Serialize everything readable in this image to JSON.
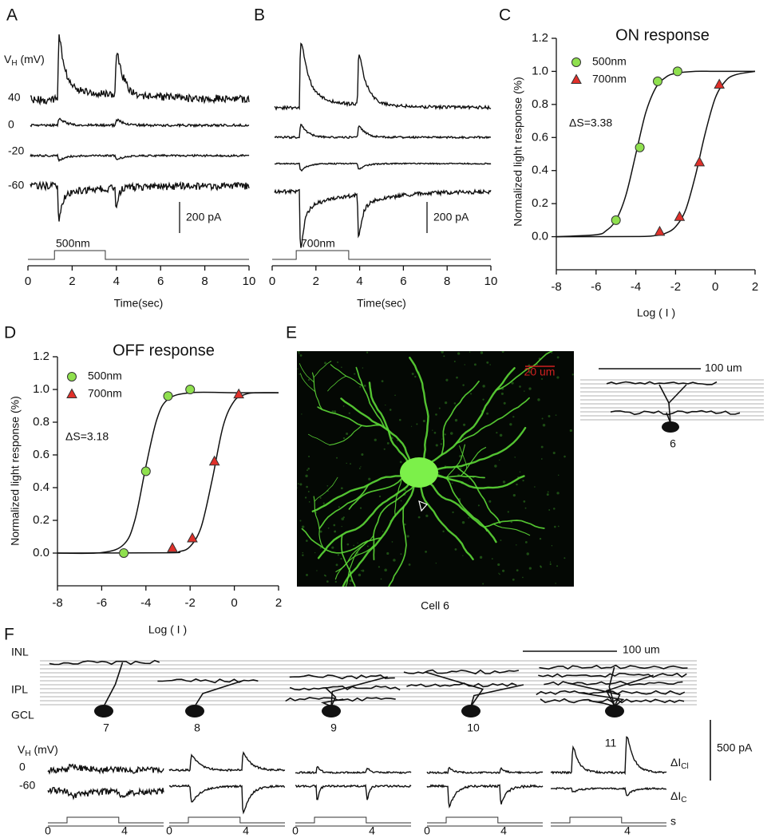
{
  "chart_data": [
    {
      "type": "scatter",
      "panel": "C",
      "title": "ON response",
      "xlabel": "Log ( I )",
      "ylabel": "Normalized light response (%)",
      "xlim": [
        -8,
        2
      ],
      "ylim": [
        -0.2,
        1.2
      ],
      "xticks": [
        -8,
        -6,
        -4,
        -2,
        0,
        2
      ],
      "yticks": [
        {
          "value": 0,
          "label": "0.0"
        },
        {
          "value": 0.2,
          "label": "0.2"
        },
        {
          "value": 0.4,
          "label": "0.4"
        },
        {
          "value": 0.6,
          "label": "0.6"
        },
        {
          "value": 0.8,
          "label": "0.8"
        },
        {
          "value": 1.0,
          "label": "1.0"
        },
        {
          "value": 1.2,
          "label": "1.2"
        }
      ],
      "annotation": "ΔS=3.38",
      "series": [
        {
          "name": "500nm",
          "color": "#8fe04e",
          "marker": "circle",
          "x": [
            -5,
            -3.8,
            -2.9,
            -1.9
          ],
          "values": [
            0.1,
            0.54,
            0.94,
            1.0
          ]
        },
        {
          "name": "700nm",
          "color": "#e0302a",
          "marker": "triangle",
          "x": [
            -2.8,
            -1.8,
            -0.8,
            0.2
          ],
          "values": [
            0.03,
            0.12,
            0.45,
            0.92
          ]
        }
      ],
      "fit_curves": [
        {
          "x": [
            -8,
            -6,
            -5.5,
            -5,
            -4.5,
            -4,
            -3.5,
            -3,
            -2.5,
            -2,
            -1,
            0,
            2
          ],
          "values": [
            0,
            0.012,
            0.036,
            0.1,
            0.25,
            0.5,
            0.75,
            0.9,
            0.964,
            0.988,
            1.0,
            1.0,
            1.0
          ]
        },
        {
          "x": [
            -8,
            -4,
            -3,
            -2.5,
            -2,
            -1.5,
            -1,
            -0.5,
            0,
            0.5,
            1,
            2
          ],
          "values": [
            0,
            0.001,
            0.007,
            0.021,
            0.06,
            0.16,
            0.37,
            0.63,
            0.84,
            0.94,
            0.979,
            1.0
          ]
        }
      ]
    },
    {
      "type": "scatter",
      "panel": "D",
      "title": "OFF response",
      "xlabel": "Log ( I )",
      "ylabel": "Normalized light response (%)",
      "xlim": [
        -8,
        2
      ],
      "ylim": [
        -0.2,
        1.2
      ],
      "xticks": [
        -8,
        -6,
        -4,
        -2,
        0,
        2
      ],
      "yticks": [
        {
          "value": 0,
          "label": "0.0"
        },
        {
          "value": 0.2,
          "label": "0.2"
        },
        {
          "value": 0.4,
          "label": "0.4"
        },
        {
          "value": 0.6,
          "label": "0.6"
        },
        {
          "value": 0.8,
          "label": "0.8"
        },
        {
          "value": 1.0,
          "label": "1.0"
        },
        {
          "value": 1.2,
          "label": "1.2"
        }
      ],
      "annotation": "ΔS=3.18",
      "series": [
        {
          "name": "500nm",
          "color": "#8fe04e",
          "marker": "circle",
          "x": [
            -5,
            -4,
            -3,
            -2
          ],
          "values": [
            0.0,
            0.5,
            0.96,
            1.0
          ]
        },
        {
          "name": "700nm",
          "color": "#e0302a",
          "marker": "triangle",
          "x": [
            -2.8,
            -1.9,
            -0.9,
            0.2
          ],
          "values": [
            0.03,
            0.09,
            0.56,
            0.97
          ]
        }
      ],
      "fit_curves": [
        {
          "x": [
            -8,
            -6,
            -5,
            -4.5,
            -4,
            -3.5,
            -3,
            -2,
            0,
            2
          ],
          "values": [
            0,
            0.003,
            0.053,
            0.2,
            0.53,
            0.82,
            0.94,
            0.98,
            0.98,
            0.98
          ]
        },
        {
          "x": [
            -8,
            -3,
            -2.5,
            -2,
            -1.5,
            -1,
            -0.5,
            0,
            0.5,
            1,
            2
          ],
          "values": [
            0,
            0.002,
            0.009,
            0.04,
            0.16,
            0.45,
            0.78,
            0.93,
            0.97,
            0.98,
            0.98
          ]
        }
      ]
    }
  ],
  "panels": {
    "A": {
      "label": "A",
      "vh_label": [
        "V",
        "H",
        " (mV)"
      ],
      "holding": [
        40,
        0,
        -20,
        -60
      ],
      "xlim": [
        0,
        10
      ],
      "xticks": [
        0,
        2,
        4,
        6,
        8,
        10
      ],
      "xlabel": "Time(sec)",
      "scale_bar": "200 pA",
      "stimulus": "500nm"
    },
    "B": {
      "label": "B",
      "xlim": [
        0,
        10
      ],
      "xticks": [
        0,
        2,
        4,
        6,
        8,
        10
      ],
      "xlabel": "Time(sec)",
      "scale_bar": "200 pA",
      "stimulus": "700nm"
    },
    "E": {
      "label": "E",
      "scale_bar": "20 um",
      "caption": "Cell 6",
      "diagram_scale": "100 um",
      "cell": "6"
    },
    "F": {
      "label": "F",
      "layers": [
        "INL",
        "IPL",
        "GCL"
      ],
      "scale_bar": "100 um",
      "cells": [
        "7",
        "8",
        "9",
        "10",
        "11"
      ],
      "vh_label": [
        "V",
        "H",
        " (mV)"
      ],
      "holding": [
        0,
        -60
      ],
      "current_scale": "500 pA",
      "currents": [
        {
          "text": "ΔI",
          "sub": "Cl"
        },
        {
          "text": "ΔI",
          "sub": "C"
        }
      ],
      "time_ticks": [
        [
          0,
          4
        ],
        [
          0,
          4
        ],
        [
          0,
          4
        ],
        [
          0,
          4
        ],
        [
          4
        ]
      ],
      "time_unit": "s"
    }
  }
}
